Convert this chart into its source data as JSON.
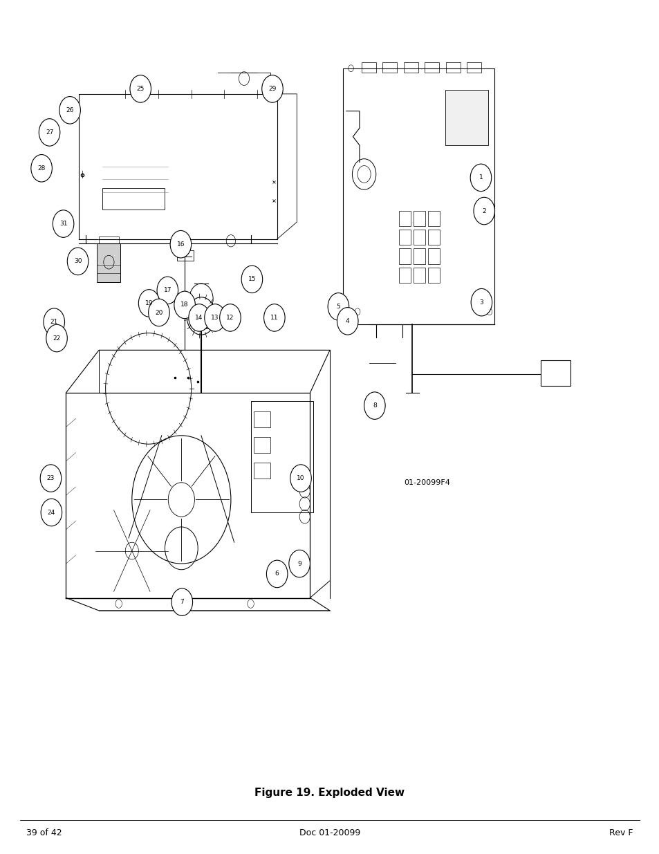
{
  "title": "Figure 19. Exploded View",
  "footer_left": "39 of 42",
  "footer_center": "Doc 01-20099",
  "footer_right": "Rev F",
  "figure_label": "01-20099F4",
  "background_color": "#ffffff",
  "text_color": "#000000",
  "page_width": 9.54,
  "page_height": 12.35,
  "dpi": 100
}
